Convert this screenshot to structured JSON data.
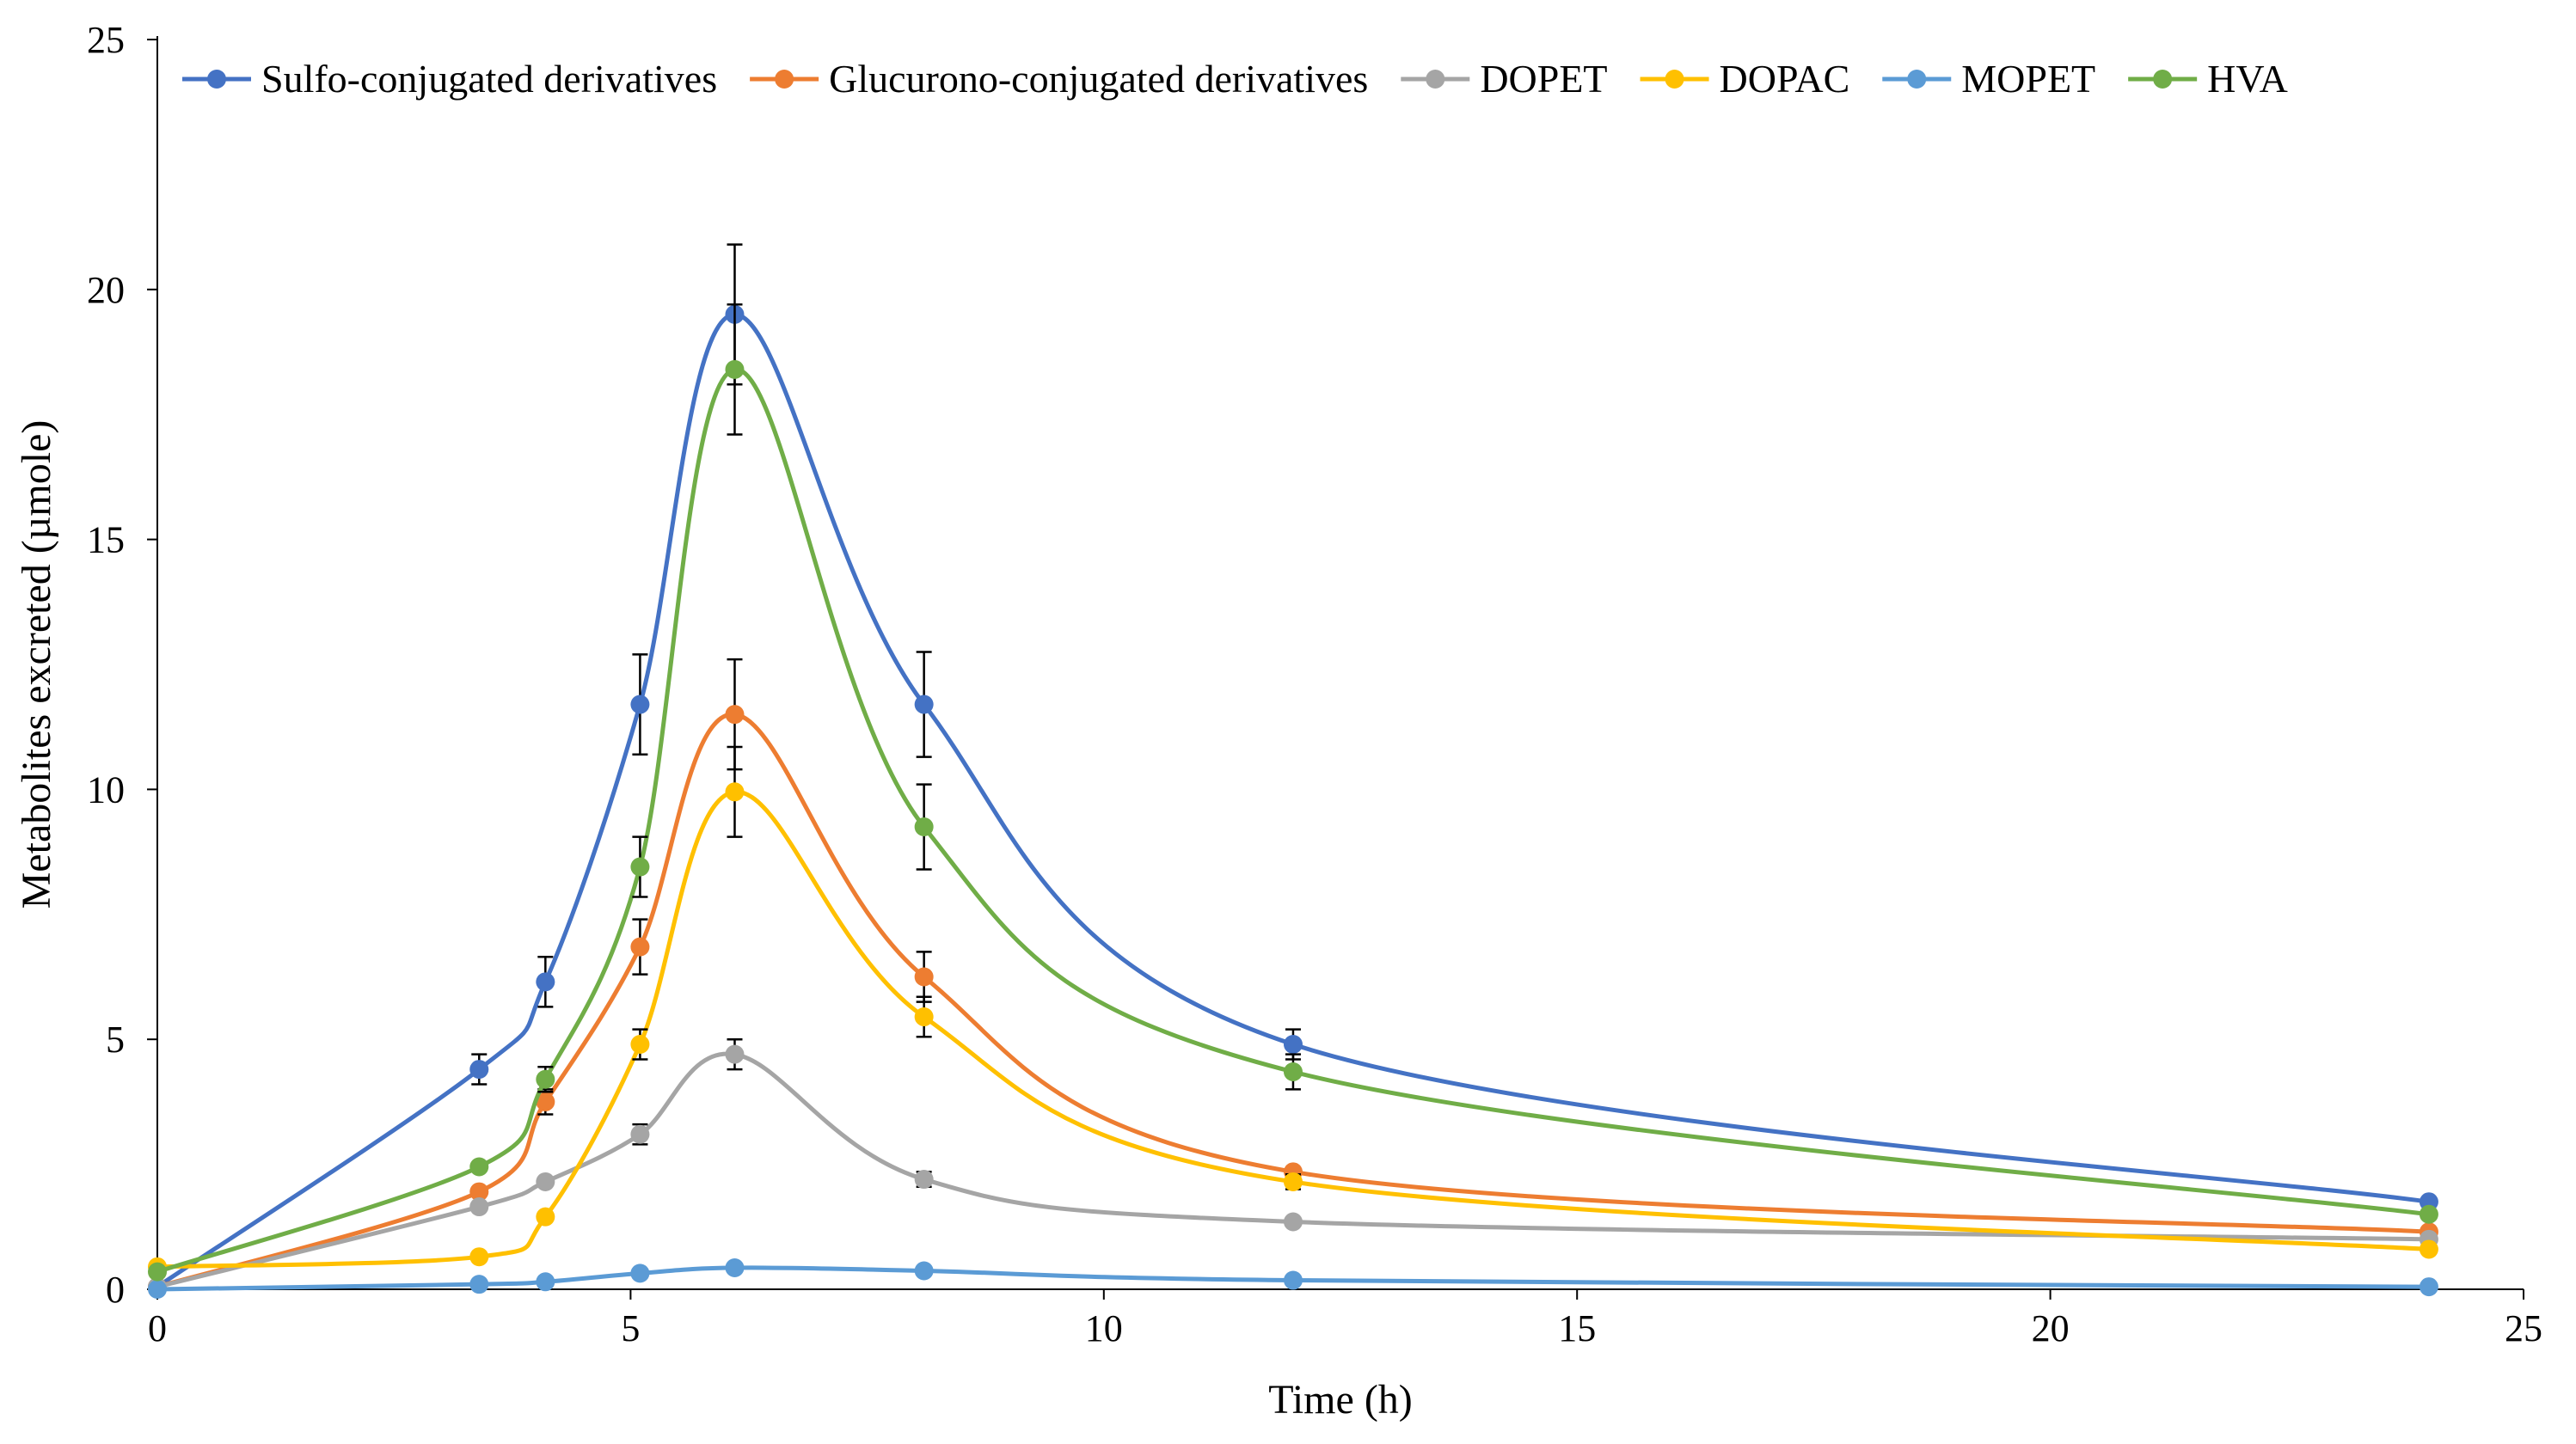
{
  "chart_data": {
    "type": "line",
    "title": "",
    "xlabel": "Time (h)",
    "ylabel": "Metabolites excreted (µmole)",
    "xlim": [
      0,
      25
    ],
    "ylim": [
      0,
      25
    ],
    "xticks": [
      0,
      5,
      10,
      15,
      20,
      25
    ],
    "yticks": [
      0,
      5,
      10,
      15,
      20,
      25
    ],
    "legend_position": "top",
    "x": [
      0,
      3.4,
      4.1,
      5.1,
      6.1,
      8.1,
      12,
      24
    ],
    "series": [
      {
        "name": "Sulfo-conjugated derivatives",
        "color": "#4472C4",
        "values": [
          0.05,
          4.4,
          6.15,
          11.7,
          19.5,
          11.7,
          4.9,
          1.75
        ],
        "errors": [
          0,
          0.3,
          0.5,
          1.0,
          1.4,
          1.05,
          0.3,
          0
        ]
      },
      {
        "name": "Glucurono-conjugated derivatives",
        "color": "#ED7D31",
        "values": [
          0.05,
          1.95,
          3.75,
          6.85,
          11.5,
          6.25,
          2.35,
          1.15
        ],
        "errors": [
          0,
          0,
          0.25,
          0.55,
          1.1,
          0.5,
          0,
          0
        ]
      },
      {
        "name": "DOPET",
        "color": "#A5A5A5",
        "values": [
          0.05,
          1.65,
          2.15,
          3.1,
          4.7,
          2.2,
          1.35,
          1.0
        ],
        "errors": [
          0,
          0,
          0,
          0.2,
          0.3,
          0.15,
          0,
          0
        ]
      },
      {
        "name": "DOPAC",
        "color": "#FFC000",
        "values": [
          0.45,
          0.65,
          1.45,
          4.9,
          9.95,
          5.45,
          2.15,
          0.8
        ],
        "errors": [
          0,
          0,
          0,
          0.3,
          0.9,
          0.4,
          0.15,
          0
        ]
      },
      {
        "name": "MOPET",
        "color": "#5B9BD5",
        "values": [
          0.0,
          0.1,
          0.15,
          0.32,
          0.43,
          0.37,
          0.18,
          0.05
        ],
        "errors": [
          0,
          0,
          0,
          0,
          0,
          0,
          0,
          0
        ]
      },
      {
        "name": "HVA",
        "color": "#70AD47",
        "values": [
          0.35,
          2.45,
          4.2,
          8.45,
          18.4,
          9.25,
          4.35,
          1.5
        ],
        "errors": [
          0,
          0,
          0.25,
          0.6,
          1.3,
          0.85,
          0.35,
          0
        ]
      }
    ]
  }
}
